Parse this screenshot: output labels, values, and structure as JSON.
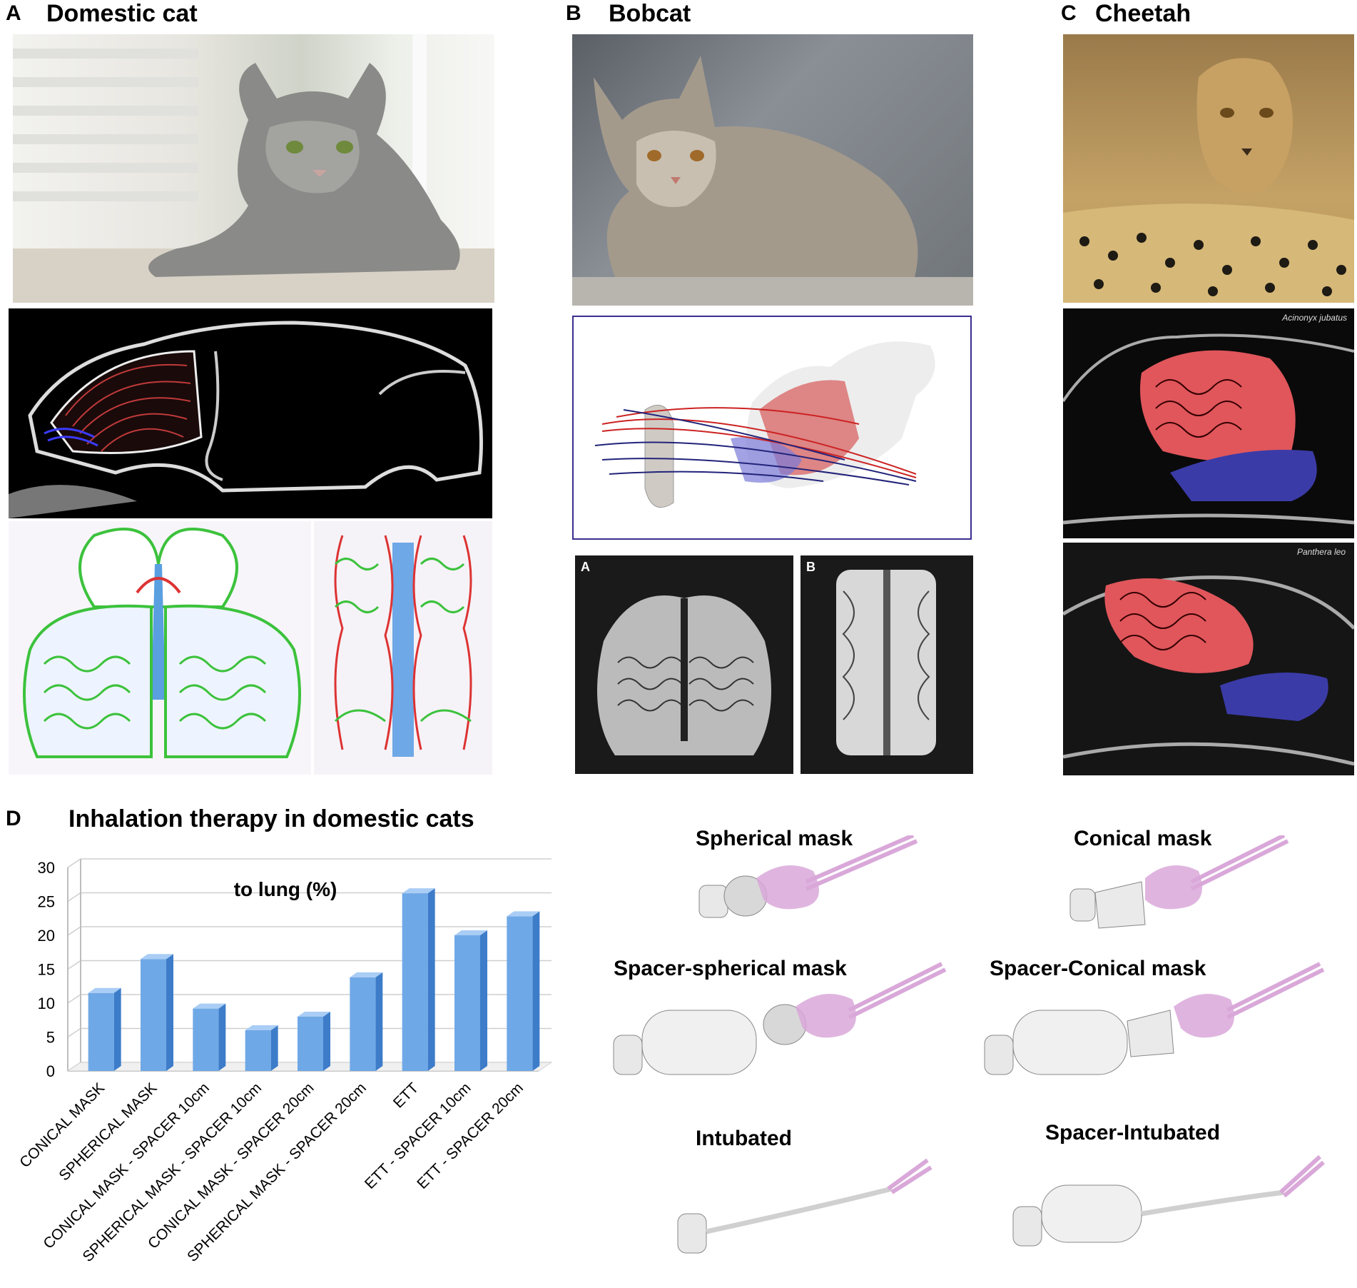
{
  "panels": {
    "a": {
      "letter": "A",
      "title": "Domestic cat"
    },
    "b": {
      "letter": "B",
      "title": "Bobcat",
      "inset_a": "A",
      "inset_b": "B"
    },
    "c": {
      "letter": "C",
      "title": "Cheetah",
      "species_top": "Acinonyx jubatus",
      "species_bottom": "Panthera leo"
    },
    "d": {
      "letter": "D",
      "title": "Inhalation therapy in domestic cats"
    }
  },
  "models": [
    {
      "label": "Spherical mask"
    },
    {
      "label": "Conical mask"
    },
    {
      "label": "Spacer-spherical mask"
    },
    {
      "label": "Spacer-Conical mask"
    },
    {
      "label": "Intubated"
    },
    {
      "label": "Spacer-Intubated"
    }
  ],
  "chart_data": {
    "type": "bar",
    "title": "to lung (%)",
    "categories": [
      "CONICAL MASK",
      "SPHERICAL MASK",
      "CONICAL MASK - SPACER 10cm",
      "SPHERICAL MASK - SPACER 10cm",
      "CONICAL MASK - SPACER 20cm",
      "SPHERICAL MASK - SPACER 20cm",
      "ETT",
      "ETT - SPACER 10cm",
      "ETT - SPACER 20cm"
    ],
    "values": [
      11.5,
      16.5,
      9.2,
      6.0,
      8.0,
      13.8,
      26.2,
      20.0,
      22.8
    ],
    "ylim": [
      0,
      30
    ],
    "yticks": [
      0,
      5,
      10,
      15,
      20,
      25,
      30
    ],
    "grid": true,
    "colors": {
      "bar": "#6fa8e6",
      "bar_dark": "#3d7cc9",
      "bar_top": "#a9cdf5"
    }
  }
}
